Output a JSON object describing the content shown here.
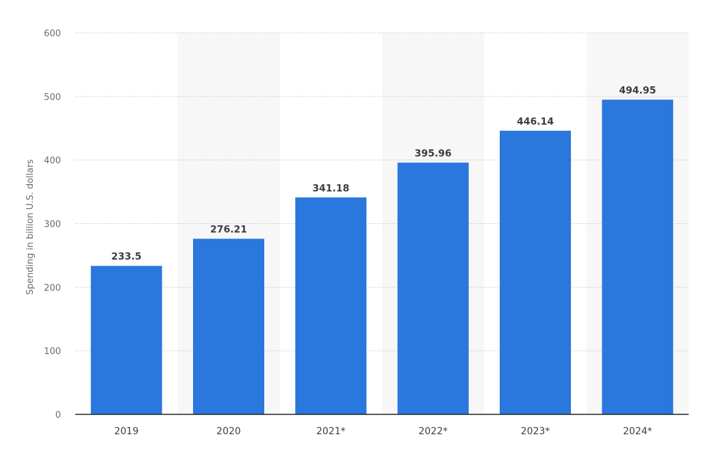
{
  "chart_data": {
    "type": "bar",
    "categories": [
      "2019",
      "2020",
      "2021*",
      "2022*",
      "2023*",
      "2024*"
    ],
    "values": [
      233.5,
      276.21,
      341.18,
      395.96,
      446.14,
      494.95
    ],
    "value_labels": [
      "233.5",
      "276.21",
      "341.18",
      "395.96",
      "446.14",
      "494.95"
    ],
    "ylabel": "Spending in billion U.S. dollars",
    "xlabel": "",
    "title": "",
    "ylim": [
      0,
      600
    ],
    "yticks": [
      "0",
      "100",
      "200",
      "300",
      "400",
      "500",
      "600"
    ],
    "grid": true,
    "legend": "none",
    "colors": {
      "bar": "#2a77dd",
      "band": "#f7f7f8",
      "grid": "#c5c5c5",
      "axis": "#222222",
      "tick_text": "#6b6b6b",
      "value_text": "#3d3d3d"
    }
  }
}
